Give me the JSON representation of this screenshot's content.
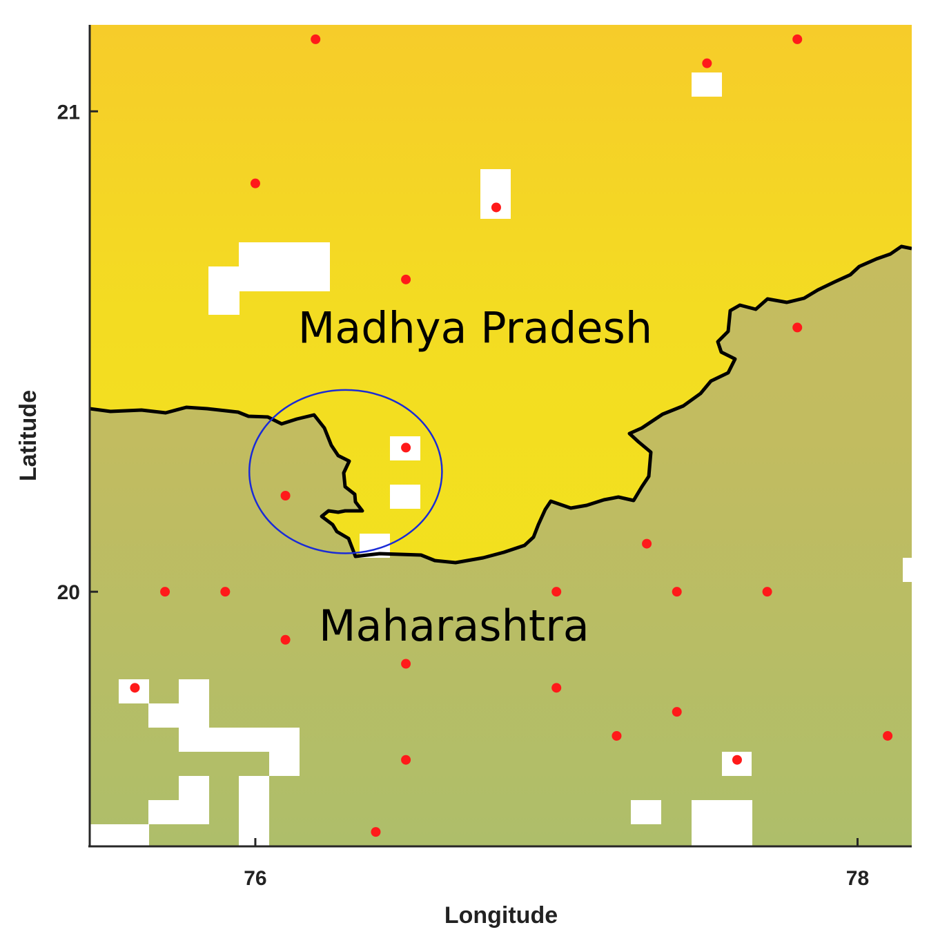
{
  "map": {
    "xlabel": "Longitude",
    "ylabel": "Latitude",
    "xlim": [
      75.45,
      78.18
    ],
    "ylim": [
      19.47,
      21.18
    ],
    "x_ticks": [
      {
        "value": 76,
        "label": "76"
      },
      {
        "value": 78,
        "label": "78"
      }
    ],
    "y_ticks": [
      {
        "value": 20,
        "label": "20"
      },
      {
        "value": 21,
        "label": "21"
      }
    ],
    "regions": [
      {
        "name": "Madhya Pradesh",
        "lon": 76.73,
        "lat": 20.55,
        "color": "#f3dc22"
      },
      {
        "name": "Maharashtra",
        "lon": 76.66,
        "lat": 19.93,
        "color": "#c2bc60"
      }
    ],
    "colors": {
      "north_fill": "#f3dc22",
      "north_top": "#f6cc2a",
      "south_fill": "#c2bc60",
      "south_bottom": "#aebe6a",
      "border": "#000000",
      "station": "#ff1a1a",
      "circle": "#1a2bd6",
      "missing_cells": "#ffffff"
    },
    "highlight_circle": {
      "lon": 76.3,
      "lat": 20.25,
      "r_lon": 0.32,
      "r_lat": 0.17
    },
    "stations": [
      {
        "lon": 76.2,
        "lat": 21.15
      },
      {
        "lon": 77.5,
        "lat": 21.1
      },
      {
        "lon": 77.8,
        "lat": 21.15
      },
      {
        "lon": 76.0,
        "lat": 20.85
      },
      {
        "lon": 76.8,
        "lat": 20.8
      },
      {
        "lon": 76.5,
        "lat": 20.65
      },
      {
        "lon": 77.8,
        "lat": 20.55
      },
      {
        "lon": 76.5,
        "lat": 20.3
      },
      {
        "lon": 76.1,
        "lat": 20.2
      },
      {
        "lon": 77.3,
        "lat": 20.1
      },
      {
        "lon": 75.7,
        "lat": 20.0
      },
      {
        "lon": 75.9,
        "lat": 20.0
      },
      {
        "lon": 77.0,
        "lat": 20.0
      },
      {
        "lon": 77.4,
        "lat": 20.0
      },
      {
        "lon": 77.7,
        "lat": 20.0
      },
      {
        "lon": 76.1,
        "lat": 19.9
      },
      {
        "lon": 76.5,
        "lat": 19.85
      },
      {
        "lon": 75.6,
        "lat": 19.8
      },
      {
        "lon": 77.0,
        "lat": 19.8
      },
      {
        "lon": 77.4,
        "lat": 19.75
      },
      {
        "lon": 77.2,
        "lat": 19.7
      },
      {
        "lon": 78.1,
        "lat": 19.7
      },
      {
        "lon": 76.5,
        "lat": 19.65
      },
      {
        "lon": 77.6,
        "lat": 19.65
      },
      {
        "lon": 76.4,
        "lat": 19.5
      }
    ]
  }
}
